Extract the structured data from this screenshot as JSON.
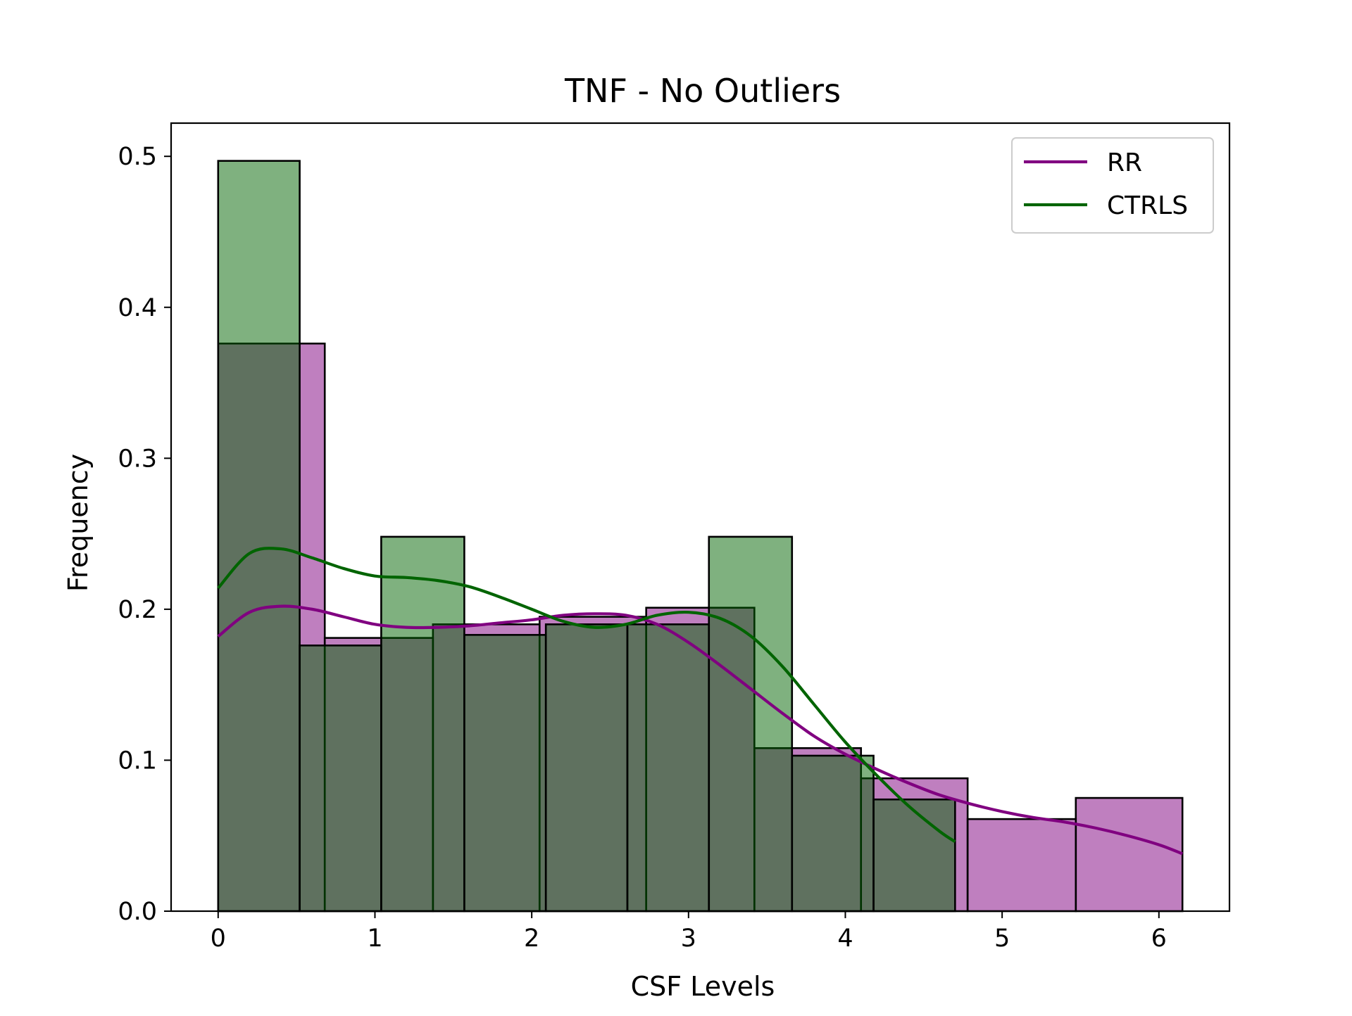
{
  "chart_data": {
    "type": "histogram",
    "title": "TNF - No Outliers",
    "xlabel": "CSF Levels",
    "ylabel": "Frequency",
    "xlim": [
      -0.3,
      6.45
    ],
    "ylim": [
      0,
      0.522
    ],
    "xticks": [
      0,
      1,
      2,
      3,
      4,
      5,
      6
    ],
    "yticks": [
      0.0,
      0.1,
      0.2,
      0.3,
      0.4,
      0.5
    ],
    "ytick_labels": [
      "0.0",
      "0.1",
      "0.2",
      "0.3",
      "0.4",
      "0.5"
    ],
    "legend_position": "upper right",
    "series": [
      {
        "name": "RR",
        "color": "#800080",
        "bar_fill": "#bf80bf",
        "bins": [
          {
            "x0": 0.0,
            "x1": 0.68,
            "value": 0.376
          },
          {
            "x0": 0.68,
            "x1": 1.37,
            "value": 0.181
          },
          {
            "x0": 1.37,
            "x1": 2.05,
            "value": 0.19
          },
          {
            "x0": 2.05,
            "x1": 2.73,
            "value": 0.195
          },
          {
            "x0": 2.73,
            "x1": 3.42,
            "value": 0.201
          },
          {
            "x0": 3.42,
            "x1": 4.1,
            "value": 0.108
          },
          {
            "x0": 4.1,
            "x1": 4.78,
            "value": 0.088
          },
          {
            "x0": 4.78,
            "x1": 5.47,
            "value": 0.061
          },
          {
            "x0": 5.47,
            "x1": 6.15,
            "value": 0.075
          }
        ],
        "kde": {
          "x": [
            0.0,
            0.2,
            0.4,
            0.6,
            0.8,
            1.0,
            1.2,
            1.4,
            1.6,
            1.8,
            2.0,
            2.2,
            2.4,
            2.6,
            2.8,
            3.0,
            3.2,
            3.4,
            3.6,
            3.8,
            4.0,
            4.2,
            4.4,
            4.6,
            4.8,
            5.0,
            5.2,
            5.4,
            5.6,
            5.8,
            6.0,
            6.15
          ],
          "y": [
            0.182,
            0.198,
            0.202,
            0.2,
            0.195,
            0.19,
            0.188,
            0.188,
            0.189,
            0.191,
            0.193,
            0.196,
            0.197,
            0.196,
            0.19,
            0.178,
            0.163,
            0.147,
            0.131,
            0.116,
            0.104,
            0.094,
            0.085,
            0.077,
            0.071,
            0.066,
            0.062,
            0.059,
            0.055,
            0.05,
            0.044,
            0.038
          ]
        }
      },
      {
        "name": "CTRLS",
        "color": "#006400",
        "bar_fill": "#80b380",
        "bins": [
          {
            "x0": 0.0,
            "x1": 0.52,
            "value": 0.497
          },
          {
            "x0": 0.52,
            "x1": 1.04,
            "value": 0.176
          },
          {
            "x0": 1.04,
            "x1": 1.57,
            "value": 0.248
          },
          {
            "x0": 1.57,
            "x1": 2.09,
            "value": 0.183
          },
          {
            "x0": 2.09,
            "x1": 2.61,
            "value": 0.19
          },
          {
            "x0": 2.61,
            "x1": 3.13,
            "value": 0.19
          },
          {
            "x0": 3.13,
            "x1": 3.66,
            "value": 0.248
          },
          {
            "x0": 3.66,
            "x1": 4.18,
            "value": 0.103
          },
          {
            "x0": 4.18,
            "x1": 4.7,
            "value": 0.074
          }
        ],
        "kde": {
          "x": [
            0.0,
            0.2,
            0.4,
            0.6,
            0.8,
            1.0,
            1.2,
            1.4,
            1.6,
            1.8,
            2.0,
            2.2,
            2.4,
            2.6,
            2.8,
            3.0,
            3.2,
            3.4,
            3.6,
            3.8,
            4.0,
            4.2,
            4.4,
            4.6,
            4.7
          ],
          "y": [
            0.214,
            0.237,
            0.24,
            0.234,
            0.227,
            0.222,
            0.221,
            0.219,
            0.215,
            0.208,
            0.2,
            0.192,
            0.188,
            0.19,
            0.196,
            0.198,
            0.194,
            0.182,
            0.162,
            0.137,
            0.112,
            0.09,
            0.07,
            0.053,
            0.046
          ]
        }
      }
    ],
    "overlap_fill": "#5f7560"
  }
}
